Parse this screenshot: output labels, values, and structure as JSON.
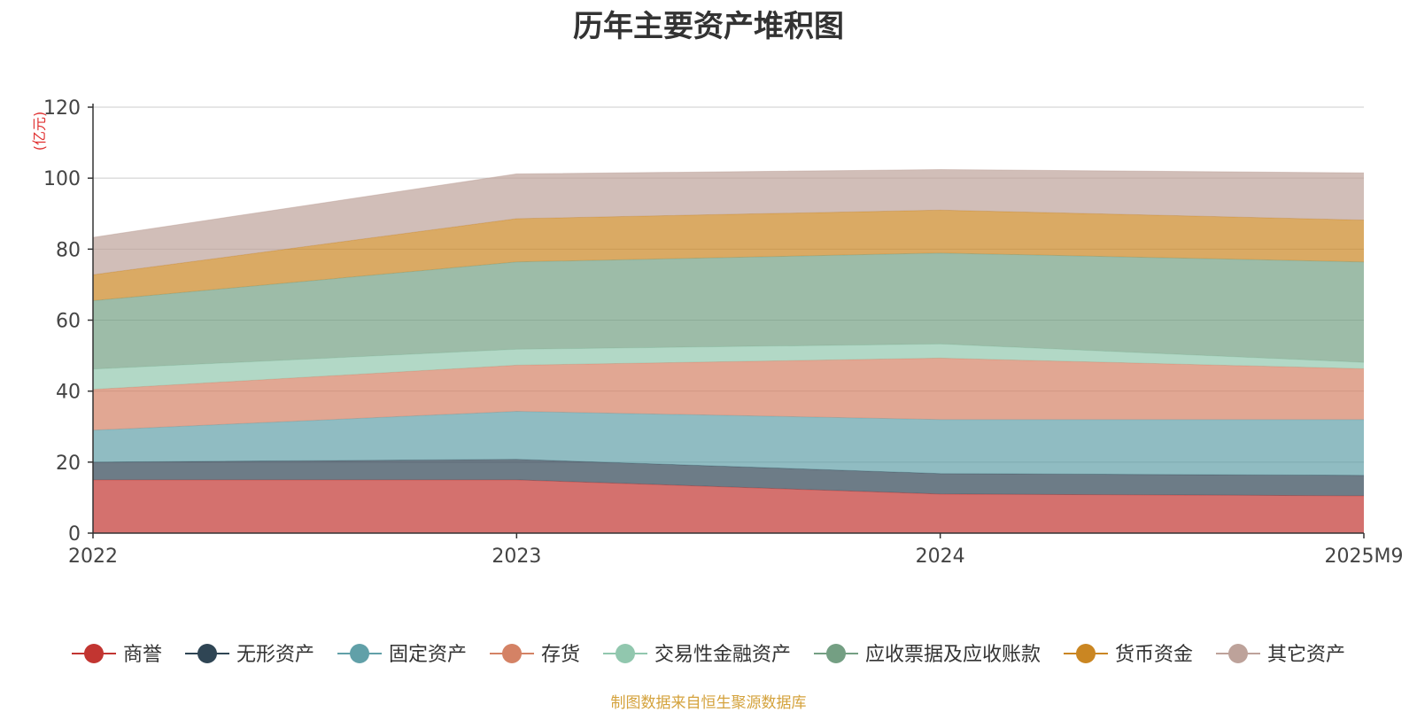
{
  "chart_data": {
    "type": "area",
    "stacked": true,
    "title": "历年主要资产堆积图",
    "unit_label": "(亿元)",
    "x": [
      "2022",
      "2023",
      "2024",
      "2025M9"
    ],
    "ylim": [
      0,
      120
    ],
    "yticks": [
      "0",
      "20",
      "40",
      "60",
      "80",
      "100",
      "120"
    ],
    "grid": true,
    "legend_position": "bottom",
    "series": [
      {
        "name": "商誉",
        "values": [
          15.0,
          15.0,
          11.0,
          10.5
        ],
        "color": "#c23531"
      },
      {
        "name": "无形资产",
        "values": [
          5.0,
          5.8,
          5.8,
          5.8
        ],
        "color": "#2f4554"
      },
      {
        "name": "固定资产",
        "values": [
          9.0,
          13.5,
          15.2,
          15.7
        ],
        "color": "#61a0a8"
      },
      {
        "name": "存货",
        "values": [
          11.5,
          13.0,
          17.3,
          14.3
        ],
        "color": "#d48265"
      },
      {
        "name": "交易性金融资产",
        "values": [
          5.7,
          4.5,
          4.0,
          1.8
        ],
        "color": "#91c7ae"
      },
      {
        "name": "应收票据及应收账款",
        "values": [
          19.3,
          24.6,
          25.6,
          28.3
        ],
        "color": "#749f83"
      },
      {
        "name": "货币资金",
        "values": [
          7.3,
          12.2,
          12.1,
          11.8
        ],
        "color": "#ca8622"
      },
      {
        "name": "其它资产",
        "values": [
          10.5,
          12.6,
          11.4,
          13.3
        ],
        "color": "#bda29a"
      }
    ]
  },
  "source_note": "制图数据来自恒生聚源数据库"
}
